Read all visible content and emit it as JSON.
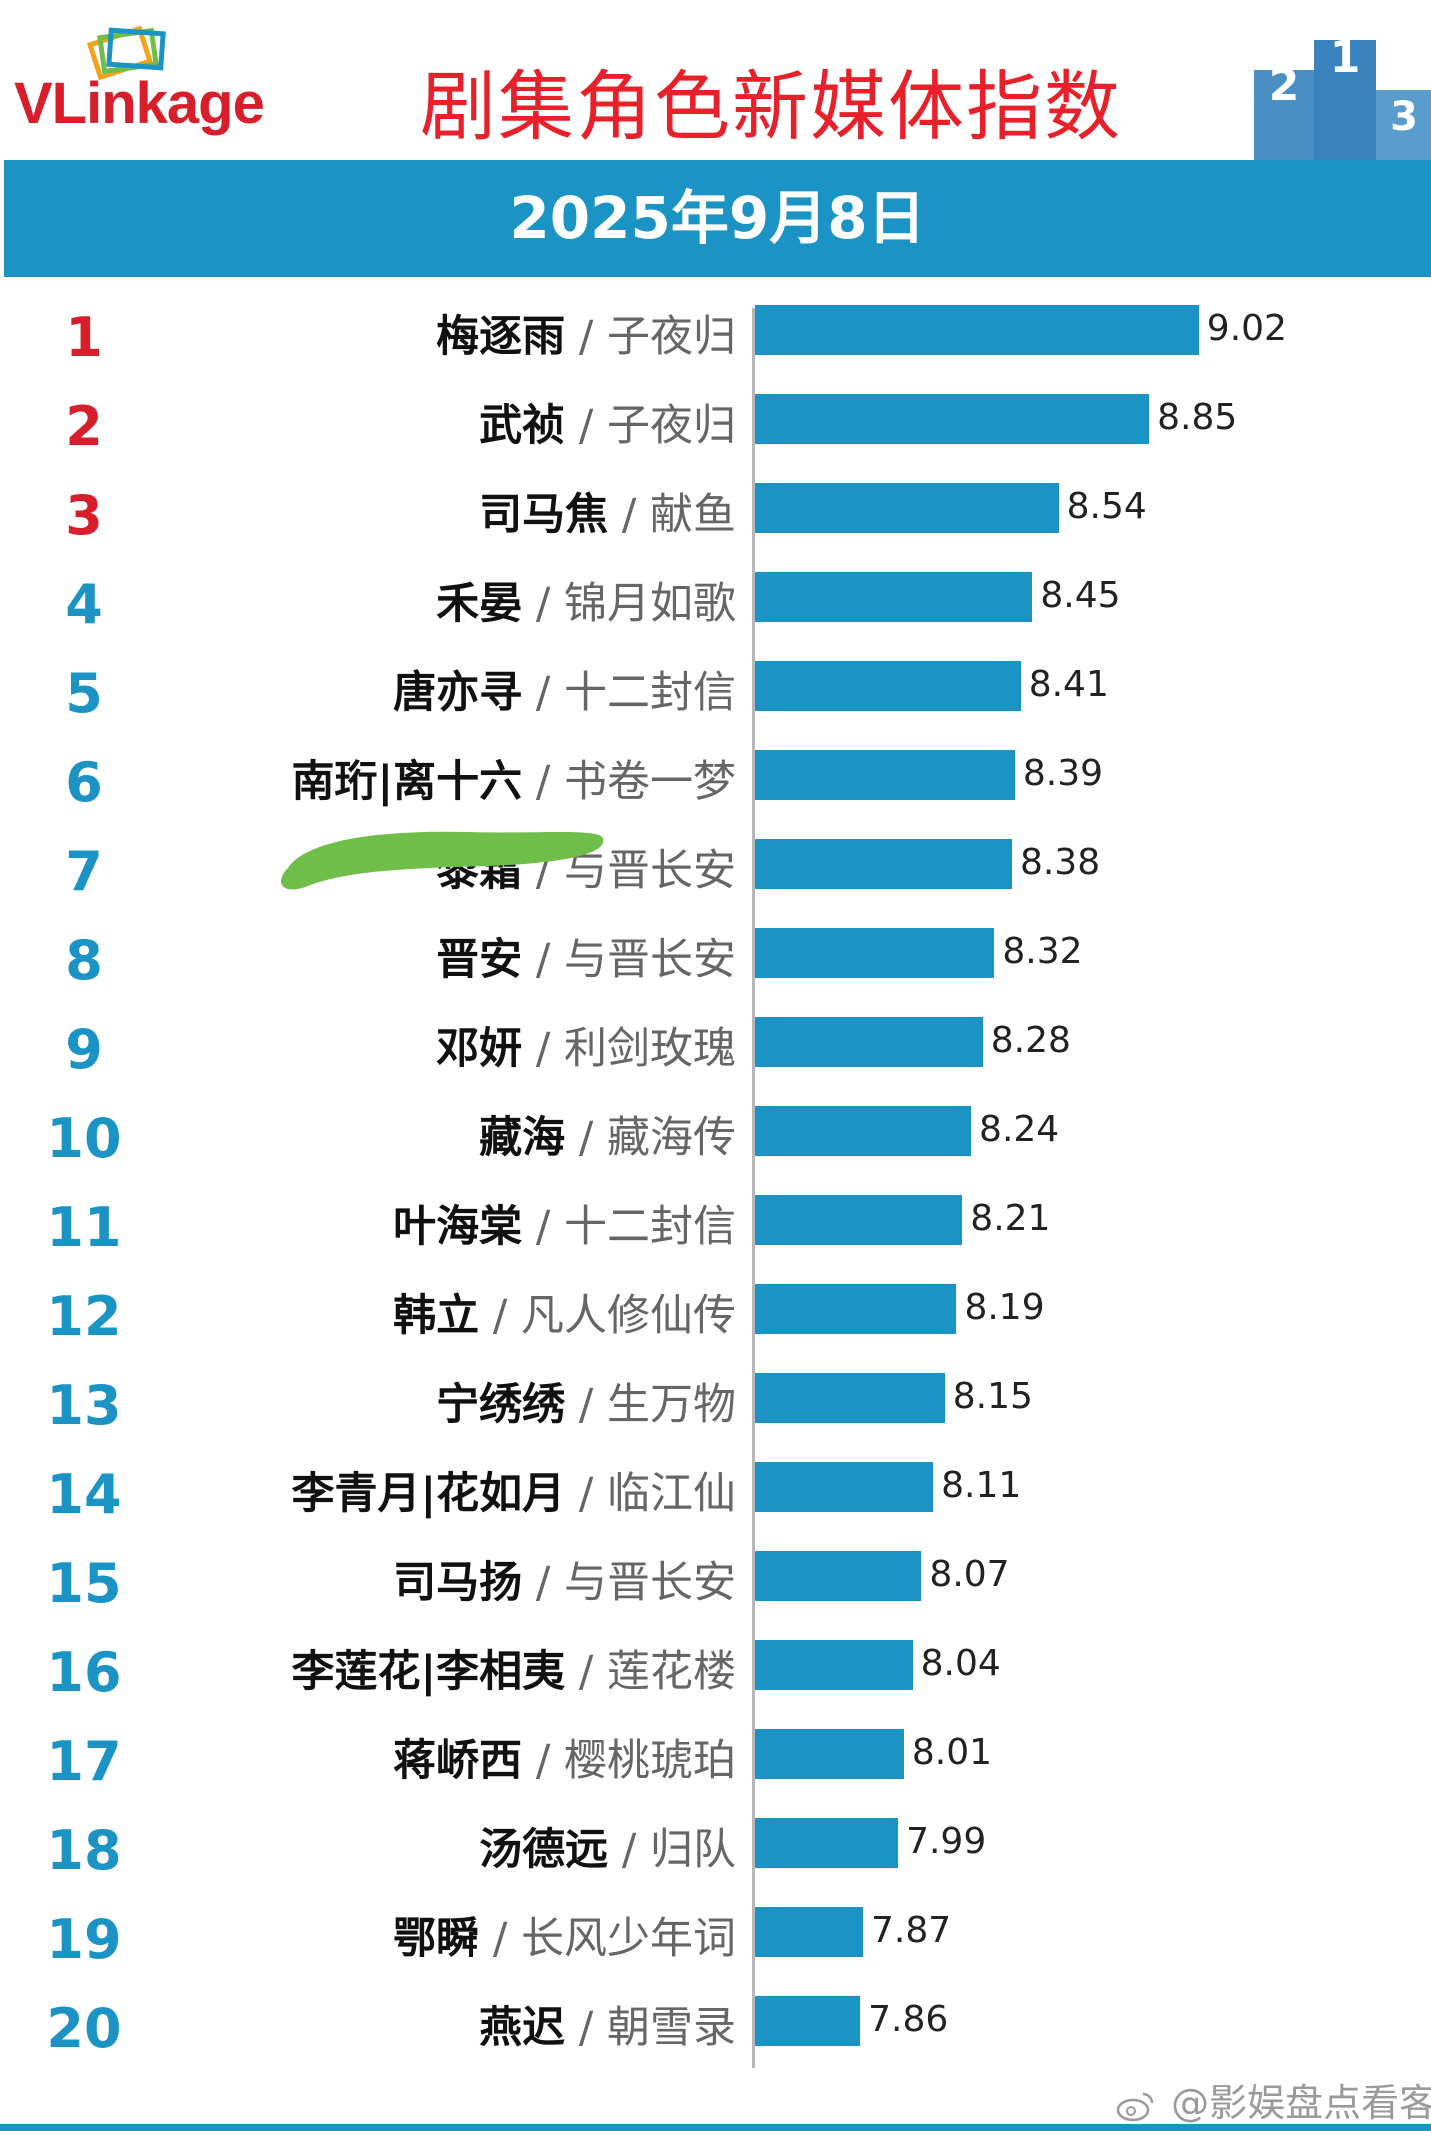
{
  "header": {
    "logo_text": "VLinkage",
    "title": "剧集角色新媒体指数",
    "date": "2025年9月8日",
    "podium_numbers": [
      "2",
      "1",
      "3"
    ]
  },
  "watermark": "@影娱盘点看客",
  "colors": {
    "accent": "#1b93c4",
    "title_red": "#e8202a",
    "rank_red": "#d81e2a",
    "scribble_green": "#6fbe4a"
  },
  "chart_data": {
    "type": "bar",
    "orientation": "horizontal",
    "title": "剧集角色新媒体指数",
    "subtitle": "2025年9月8日",
    "xlim": [
      7.5,
      9.12
    ],
    "grid": false,
    "legend": "none",
    "rows": [
      {
        "rank": "1",
        "name": "梅逐雨",
        "drama": "子夜归",
        "value": 9.02,
        "label": "9.02"
      },
      {
        "rank": "2",
        "name": "武祯",
        "drama": "子夜归",
        "value": 8.85,
        "label": "8.85"
      },
      {
        "rank": "3",
        "name": "司马焦",
        "drama": "献鱼",
        "value": 8.54,
        "label": "8.54"
      },
      {
        "rank": "4",
        "name": "禾晏",
        "drama": "锦月如歌",
        "value": 8.45,
        "label": "8.45"
      },
      {
        "rank": "5",
        "name": "唐亦寻",
        "drama": "十二封信",
        "value": 8.41,
        "label": "8.41"
      },
      {
        "rank": "6",
        "name": "南珩|离十六",
        "drama": "书卷一梦",
        "value": 8.39,
        "label": "8.39"
      },
      {
        "rank": "7",
        "name": "黎霜",
        "drama": "与晋长安",
        "value": 8.38,
        "label": "8.38"
      },
      {
        "rank": "8",
        "name": "晋安",
        "drama": "与晋长安",
        "value": 8.32,
        "label": "8.32"
      },
      {
        "rank": "9",
        "name": "邓妍",
        "drama": "利剑玫瑰",
        "value": 8.28,
        "label": "8.28"
      },
      {
        "rank": "10",
        "name": "藏海",
        "drama": "藏海传",
        "value": 8.24,
        "label": "8.24"
      },
      {
        "rank": "11",
        "name": "叶海棠",
        "drama": "十二封信",
        "value": 8.21,
        "label": "8.21"
      },
      {
        "rank": "12",
        "name": "韩立",
        "drama": "凡人修仙传",
        "value": 8.19,
        "label": "8.19"
      },
      {
        "rank": "13",
        "name": "宁绣绣",
        "drama": "生万物",
        "value": 8.15,
        "label": "8.15"
      },
      {
        "rank": "14",
        "name": "李青月|花如月",
        "drama": "临江仙",
        "value": 8.11,
        "label": "8.11"
      },
      {
        "rank": "15",
        "name": "司马扬",
        "drama": "与晋长安",
        "value": 8.07,
        "label": "8.07"
      },
      {
        "rank": "16",
        "name": "李莲花|李相夷",
        "drama": "莲花楼",
        "value": 8.04,
        "label": "8.04"
      },
      {
        "rank": "17",
        "name": "蒋峤西",
        "drama": "樱桃琥珀",
        "value": 8.01,
        "label": "8.01"
      },
      {
        "rank": "18",
        "name": "汤德远",
        "drama": "归队",
        "value": 7.99,
        "label": "7.99"
      },
      {
        "rank": "19",
        "name": "鄂瞬",
        "drama": "长风少年词",
        "value": 7.87,
        "label": "7.87"
      },
      {
        "rank": "20",
        "name": "燕迟",
        "drama": "朝雪录",
        "value": 7.86,
        "label": "7.86"
      }
    ]
  }
}
